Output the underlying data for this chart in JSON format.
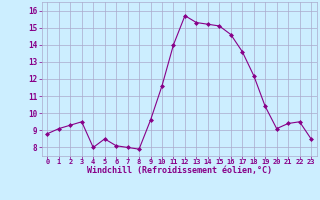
{
  "x": [
    0,
    1,
    2,
    3,
    4,
    5,
    6,
    7,
    8,
    9,
    10,
    11,
    12,
    13,
    14,
    15,
    16,
    17,
    18,
    19,
    20,
    21,
    22,
    23
  ],
  "y": [
    8.8,
    9.1,
    9.3,
    9.5,
    8.0,
    8.5,
    8.1,
    8.0,
    7.9,
    9.6,
    11.6,
    14.0,
    15.7,
    15.3,
    15.2,
    15.1,
    14.6,
    13.6,
    12.2,
    10.4,
    9.1,
    9.4,
    9.5,
    8.5
  ],
  "line_color": "#880088",
  "marker": "D",
  "marker_size": 2.0,
  "bg_color": "#cceeff",
  "grid_color": "#aaaacc",
  "xlabel": "Windchill (Refroidissement éolien,°C)",
  "xlabel_color": "#880088",
  "tick_color": "#880088",
  "ylim": [
    7.5,
    16.5
  ],
  "xlim": [
    -0.5,
    23.5
  ],
  "yticks": [
    8,
    9,
    10,
    11,
    12,
    13,
    14,
    15,
    16
  ],
  "xticks": [
    0,
    1,
    2,
    3,
    4,
    5,
    6,
    7,
    8,
    9,
    10,
    11,
    12,
    13,
    14,
    15,
    16,
    17,
    18,
    19,
    20,
    21,
    22,
    23
  ]
}
